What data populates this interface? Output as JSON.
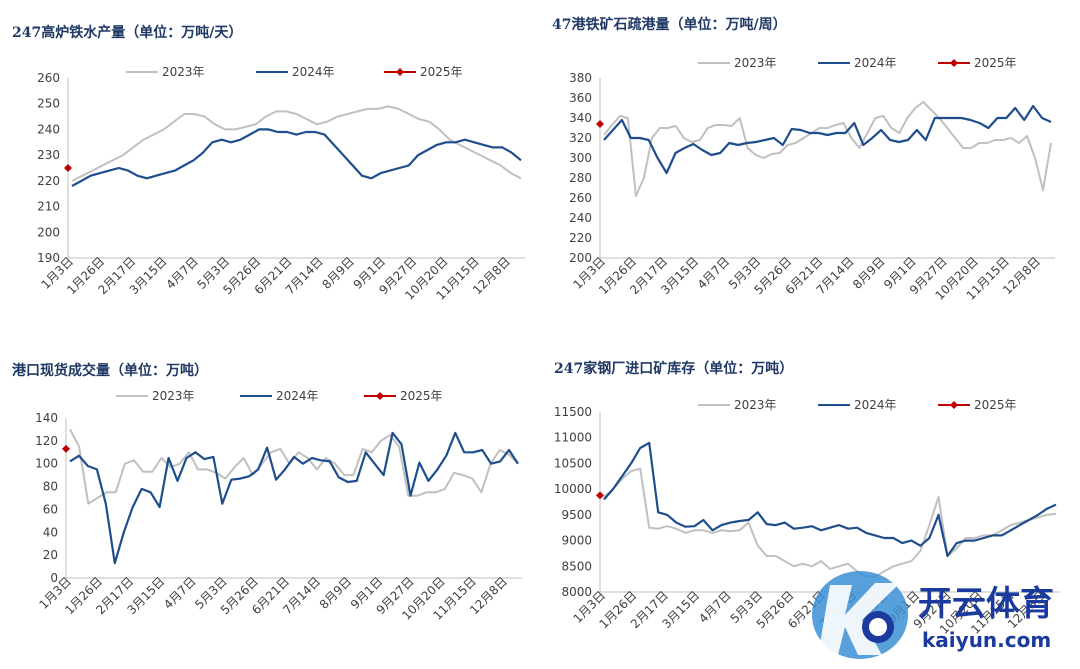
{
  "months": [
    "1月3日",
    "1月26日",
    "2月17日",
    "3月15日",
    "4月7日",
    "5月3日",
    "5月26日",
    "6月21日",
    "7月14日",
    "8月9日",
    "9月1日",
    "9月27日",
    "10月20日",
    "11月15日",
    "12月8日"
  ],
  "legend": [
    "2023年",
    "2024年",
    "2025年"
  ],
  "colors": {
    "y2023": "#c0c0c0",
    "y2024": "#1f4e8c",
    "y2025": "#c00000"
  },
  "watermark": {
    "cn": "开云体育",
    "en": "kaiyun.com"
  },
  "chart_data": [
    {
      "type": "line",
      "title": "247高炉铁水产量（单位：万吨/天）",
      "ylim": [
        190,
        260
      ],
      "yticks": [
        190,
        200,
        210,
        220,
        230,
        240,
        250,
        260
      ],
      "grid": false,
      "legend_position": "top",
      "series": [
        {
          "name": "2023年",
          "values": [
            220,
            222,
            224,
            226,
            228,
            230,
            233,
            236,
            238,
            240,
            243,
            246,
            246,
            245,
            242,
            240,
            240,
            241,
            242,
            245,
            247,
            247,
            246,
            244,
            242,
            243,
            245,
            246,
            247,
            248,
            248,
            249,
            248,
            246,
            244,
            243,
            240,
            236,
            234,
            232,
            230,
            228,
            226,
            223,
            221
          ]
        },
        {
          "name": "2024年",
          "values": [
            218,
            220,
            222,
            223,
            224,
            225,
            224,
            222,
            221,
            222,
            223,
            224,
            226,
            228,
            231,
            235,
            236,
            235,
            236,
            238,
            240,
            240,
            239,
            239,
            238,
            239,
            239,
            238,
            234,
            230,
            226,
            222,
            221,
            223,
            224,
            225,
            226,
            230,
            232,
            234,
            235,
            235,
            236,
            235,
            234,
            233,
            233,
            231,
            228
          ]
        },
        {
          "name": "2025年",
          "values": [
            225
          ]
        }
      ]
    },
    {
      "type": "line",
      "title": "47港铁矿石疏港量（单位：万吨/周）",
      "ylim": [
        200,
        380
      ],
      "yticks": [
        200,
        220,
        240,
        260,
        280,
        300,
        320,
        340,
        360,
        380
      ],
      "grid": false,
      "legend_position": "top",
      "series": [
        {
          "name": "2023年",
          "values": [
            323,
            333,
            342,
            340,
            262,
            280,
            320,
            330,
            330,
            332,
            320,
            316,
            318,
            330,
            333,
            333,
            332,
            340,
            310,
            303,
            300,
            304,
            305,
            313,
            315,
            320,
            325,
            330,
            330,
            333,
            335,
            320,
            310,
            325,
            340,
            342,
            330,
            325,
            340,
            350,
            356,
            348,
            340,
            330,
            320,
            310,
            310,
            315,
            315,
            318,
            318,
            320,
            315,
            322,
            300,
            268,
            315
          ]
        },
        {
          "name": "2024年",
          "values": [
            318,
            328,
            338,
            320,
            320,
            318,
            300,
            285,
            305,
            310,
            314,
            308,
            303,
            305,
            315,
            313,
            315,
            316,
            318,
            320,
            313,
            329,
            328,
            325,
            325,
            323,
            325,
            325,
            335,
            313,
            320,
            328,
            318,
            316,
            318,
            328,
            318,
            340,
            340,
            340,
            340,
            338,
            335,
            330,
            340,
            340,
            350,
            338,
            352,
            340,
            336
          ]
        },
        {
          "name": "2025年",
          "values": [
            334
          ]
        }
      ]
    },
    {
      "type": "line",
      "title": "港口现货成交量（单位：万吨）",
      "ylim": [
        0,
        140
      ],
      "yticks": [
        0,
        20,
        40,
        60,
        80,
        100,
        120,
        140
      ],
      "grid": false,
      "legend_position": "top",
      "series": [
        {
          "name": "2023年",
          "values": [
            130,
            115,
            65,
            70,
            75,
            75,
            100,
            103,
            93,
            93,
            105,
            97,
            100,
            110,
            95,
            95,
            92,
            87,
            97,
            105,
            90,
            100,
            110,
            113,
            100,
            110,
            105,
            95,
            105,
            100,
            90,
            90,
            113,
            110,
            120,
            125,
            115,
            72,
            72,
            75,
            75,
            78,
            92,
            90,
            87,
            75,
            100,
            112,
            108,
            100
          ]
        },
        {
          "name": "2024年",
          "values": [
            102,
            107,
            98,
            95,
            65,
            13,
            40,
            62,
            78,
            75,
            62,
            105,
            85,
            105,
            110,
            104,
            106,
            65,
            86,
            87,
            89,
            95,
            114,
            86,
            95,
            106,
            100,
            105,
            103,
            102,
            88,
            84,
            85,
            110,
            100,
            90,
            127,
            117,
            72,
            101,
            85,
            95,
            107,
            127,
            110,
            110,
            112,
            100,
            102,
            112,
            100
          ]
        },
        {
          "name": "2025年",
          "values": [
            113
          ]
        }
      ]
    },
    {
      "type": "line",
      "title": "247家钢厂进口矿库存（单位：万吨）",
      "ylim": [
        8000,
        11500
      ],
      "yticks": [
        8000,
        8500,
        9000,
        9500,
        10000,
        10500,
        11000,
        11500
      ],
      "grid": false,
      "legend_position": "top",
      "series": [
        {
          "name": "2023年",
          "values": [
            9850,
            10000,
            10200,
            10350,
            10400,
            9250,
            9230,
            9280,
            9230,
            9150,
            9200,
            9200,
            9150,
            9200,
            9180,
            9200,
            9350,
            8900,
            8700,
            8700,
            8600,
            8500,
            8550,
            8500,
            8600,
            8450,
            8500,
            8550,
            8400,
            8300,
            8300,
            8400,
            8500,
            8550,
            8600,
            8800,
            9300,
            9850,
            8700,
            8850,
            9050,
            9050,
            9100,
            9100,
            9200,
            9300,
            9350,
            9400,
            9450,
            9500,
            9520
          ]
        },
        {
          "name": "2024年",
          "values": [
            9800,
            10000,
            10250,
            10500,
            10800,
            10900,
            9550,
            9500,
            9350,
            9270,
            9280,
            9400,
            9200,
            9300,
            9350,
            9380,
            9400,
            9550,
            9320,
            9300,
            9350,
            9230,
            9250,
            9280,
            9200,
            9250,
            9300,
            9230,
            9250,
            9150,
            9100,
            9050,
            9050,
            8950,
            9000,
            8900,
            9050,
            9500,
            8700,
            8950,
            9000,
            9000,
            9050,
            9100,
            9100,
            9200,
            9300,
            9400,
            9500,
            9620,
            9700
          ]
        },
        {
          "name": "2025年",
          "values": [
            9880
          ]
        }
      ]
    }
  ]
}
